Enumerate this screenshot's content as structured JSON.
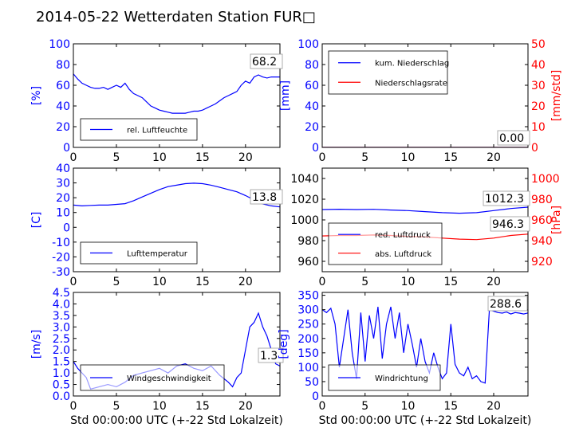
{
  "title": "2014-05-22 Wetterdaten Station FUR□",
  "xlabel_bottom": "Std 00:00:00 UTC (+-22 Std Lokalzeit)",
  "colors": {
    "blue": "#0000ff",
    "red": "#ff0000",
    "black": "#000000"
  },
  "chart_data": [
    {
      "id": "luftfeuchte",
      "type": "line",
      "ylabel": "[%]",
      "xlim": [
        0,
        24
      ],
      "ylim": [
        0,
        100
      ],
      "yticks": [
        0,
        20,
        40,
        60,
        80,
        100
      ],
      "xticks": [
        0,
        5,
        10,
        15,
        20
      ],
      "legend": "lower-left",
      "series": [
        {
          "name": "rel. Luftfeuchte",
          "color": "#0000ff",
          "x": [
            0,
            0.5,
            1,
            1.5,
            2,
            2.5,
            3,
            3.5,
            4,
            4.5,
            5,
            5.5,
            6,
            6.5,
            7,
            7.5,
            8,
            8.5,
            9,
            9.5,
            10,
            10.5,
            11,
            11.5,
            12,
            12.5,
            13,
            13.5,
            14,
            14.5,
            15,
            15.5,
            16,
            16.5,
            17,
            17.5,
            18,
            18.5,
            19,
            19.5,
            20,
            20.5,
            21,
            21.5,
            22,
            22.5,
            23,
            23.5,
            24
          ],
          "y": [
            71,
            66,
            62,
            60,
            58,
            57,
            57,
            58,
            56,
            58,
            60,
            58,
            62,
            56,
            52,
            50,
            48,
            44,
            40,
            38,
            36,
            35,
            34,
            33,
            33,
            33,
            33,
            34,
            35,
            35,
            36,
            38,
            40,
            42,
            45,
            48,
            50,
            52,
            54,
            60,
            64,
            62,
            68,
            70,
            68,
            67,
            68,
            68,
            68
          ]
        }
      ],
      "annotation": "68.2"
    },
    {
      "id": "niederschlag",
      "type": "line",
      "ylabel": "[mm]",
      "ylabel_right": "[mm/std]",
      "xlim": [
        0,
        24
      ],
      "ylim": [
        0,
        100
      ],
      "ylim_right": [
        0,
        50
      ],
      "yticks": [
        0,
        20,
        40,
        60,
        80,
        100
      ],
      "yticks_right": [
        0,
        10,
        20,
        30,
        40,
        50
      ],
      "xticks": [
        0,
        5,
        10,
        15,
        20
      ],
      "legend": "upper-left",
      "series": [
        {
          "name": "kum. Niederschlag",
          "color": "#0000ff",
          "x": [
            0,
            24
          ],
          "y": [
            0,
            0
          ]
        },
        {
          "name": "Niederschlagsrate",
          "color": "#ff0000",
          "axis": "right",
          "x": [
            0,
            24
          ],
          "y": [
            0,
            0
          ]
        }
      ],
      "annotation": "0.00"
    },
    {
      "id": "temperatur",
      "type": "line",
      "ylabel": "[C]",
      "xlim": [
        0,
        24
      ],
      "ylim": [
        -30,
        40
      ],
      "yticks": [
        -30,
        -20,
        -10,
        0,
        10,
        20,
        30,
        40
      ],
      "xticks": [
        0,
        5,
        10,
        15,
        20
      ],
      "legend": "lower-left",
      "series": [
        {
          "name": "Lufttemperatur",
          "color": "#0000ff",
          "x": [
            0,
            1,
            2,
            3,
            4,
            5,
            6,
            7,
            8,
            9,
            10,
            11,
            12,
            13,
            14,
            15,
            16,
            17,
            18,
            19,
            20,
            21,
            22,
            23,
            24
          ],
          "y": [
            15,
            14.5,
            14.8,
            15,
            15,
            15.5,
            16,
            18,
            20.5,
            23,
            25.5,
            27.5,
            28.5,
            29.5,
            29.8,
            29.5,
            28.5,
            27,
            25.5,
            24,
            21.5,
            18.5,
            15.8,
            14.5,
            13.8
          ]
        }
      ],
      "annotation": "13.8"
    },
    {
      "id": "luftdruck",
      "type": "line",
      "ylabel_right": "[hPa]",
      "xlim": [
        0,
        24
      ],
      "ylim": [
        950,
        1050
      ],
      "ylim_right": [
        910,
        1010
      ],
      "yticks": [
        960,
        980,
        1000,
        1020,
        1040
      ],
      "yticks_right": [
        920,
        940,
        960,
        980,
        1000
      ],
      "xticks": [
        0,
        5,
        10,
        15,
        20
      ],
      "legend": "lower-left",
      "series": [
        {
          "name": "red. Luftdruck",
          "color": "#0000ff",
          "x": [
            0,
            2,
            4,
            6,
            8,
            10,
            12,
            14,
            16,
            18,
            20,
            22,
            24
          ],
          "y": [
            1010,
            1010.3,
            1010,
            1010.2,
            1009.5,
            1009,
            1008,
            1007,
            1006.5,
            1007,
            1009,
            1011,
            1012.3
          ]
        },
        {
          "name": "abs. Luftdruck",
          "color": "#ff0000",
          "axis": "right",
          "x": [
            0,
            2,
            4,
            6,
            8,
            10,
            12,
            14,
            16,
            18,
            20,
            22,
            24
          ],
          "y": [
            944.5,
            945,
            945,
            945.5,
            945,
            944,
            943.5,
            942.5,
            941.5,
            941,
            942.5,
            945,
            946.3
          ]
        }
      ],
      "annotations": [
        "1012.3",
        "946.3"
      ]
    },
    {
      "id": "wind",
      "type": "line",
      "ylabel": "[m/s]",
      "xlim": [
        0,
        24
      ],
      "ylim": [
        0,
        4.5
      ],
      "yticks": [
        0.0,
        0.5,
        1.0,
        1.5,
        2.0,
        2.5,
        3.0,
        3.5,
        4.0,
        4.5
      ],
      "xticks": [
        0,
        5,
        10,
        15,
        20
      ],
      "legend": "lower-left",
      "series": [
        {
          "name": "Windgeschwindigkeit",
          "color": "#0000ff",
          "x": [
            0,
            0.5,
            1,
            1.5,
            2,
            3,
            4,
            5,
            6,
            7,
            8,
            9,
            10,
            11,
            12,
            13,
            14,
            15,
            16,
            17,
            18,
            18.5,
            19,
            19.5,
            20,
            20.5,
            21,
            21.5,
            22,
            22.5,
            23,
            23.5,
            24
          ],
          "y": [
            1.5,
            1.2,
            1.0,
            0.8,
            0.3,
            0.4,
            0.5,
            0.4,
            0.6,
            0.9,
            1.0,
            1.1,
            1.2,
            1.0,
            1.3,
            1.4,
            1.2,
            1.1,
            1.3,
            0.9,
            0.6,
            0.4,
            0.8,
            1.0,
            2.0,
            3.0,
            3.2,
            3.6,
            3.0,
            2.6,
            2.0,
            1.4,
            1.3
          ]
        }
      ],
      "annotation": "1.3"
    },
    {
      "id": "windrichtung",
      "type": "line",
      "ylabel": "[deg]",
      "xlim": [
        0,
        24
      ],
      "ylim": [
        0,
        360
      ],
      "yticks": [
        0,
        50,
        100,
        150,
        200,
        250,
        300,
        350
      ],
      "xticks": [
        0,
        5,
        10,
        15,
        20
      ],
      "legend": "lower-left",
      "series": [
        {
          "name": "Windrichtung",
          "color": "#0000ff",
          "x": [
            0,
            0.5,
            1,
            1.5,
            2,
            2.5,
            3,
            3.5,
            4,
            4.5,
            5,
            5.5,
            6,
            6.5,
            7,
            7.5,
            8,
            8.5,
            9,
            9.5,
            10,
            10.5,
            11,
            11.5,
            12,
            12.5,
            13,
            13.5,
            14,
            14.5,
            15,
            15.5,
            16,
            16.5,
            17,
            17.5,
            18,
            18.5,
            19,
            19.5,
            20,
            20.5,
            21,
            21.5,
            22,
            22.5,
            23,
            23.5,
            24
          ],
          "y": [
            300,
            290,
            305,
            250,
            100,
            200,
            300,
            150,
            60,
            290,
            120,
            280,
            200,
            310,
            130,
            250,
            310,
            200,
            290,
            150,
            250,
            180,
            100,
            200,
            120,
            80,
            150,
            100,
            60,
            80,
            250,
            110,
            80,
            70,
            100,
            60,
            70,
            50,
            45,
            300,
            295,
            290,
            288,
            292,
            285,
            290,
            288,
            285,
            288.6
          ]
        }
      ],
      "annotation": "288.6"
    }
  ]
}
